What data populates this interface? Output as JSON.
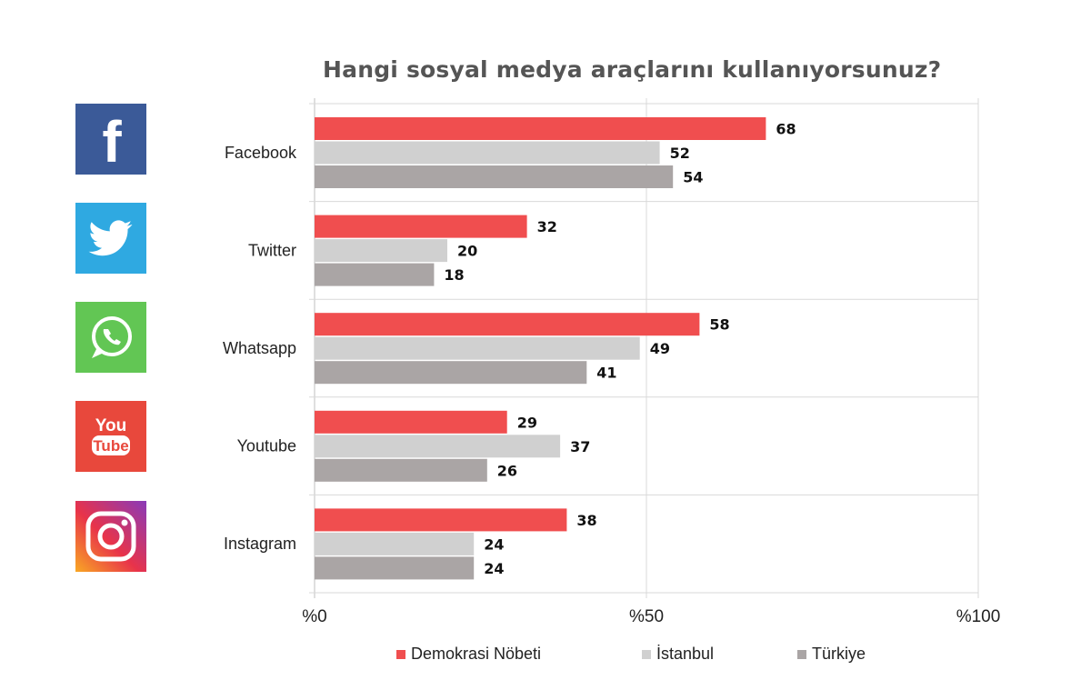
{
  "chart_data": {
    "type": "bar",
    "orientation": "horizontal",
    "title": "Hangi sosyal medya araçlarını kullanıyorsunuz?",
    "categories": [
      "Facebook",
      "Twitter",
      "Whatsapp",
      "Youtube",
      "Instagram"
    ],
    "series": [
      {
        "name": "Demokrasi Nöbeti",
        "color": "#f04e4f",
        "values": [
          68,
          32,
          58,
          29,
          38
        ]
      },
      {
        "name": "İstanbul",
        "color": "#d0d0d0",
        "values": [
          52,
          20,
          49,
          37,
          24
        ]
      },
      {
        "name": "Türkiye",
        "color": "#aaa5a5",
        "values": [
          54,
          18,
          41,
          26,
          24
        ]
      }
    ],
    "xlim": [
      0,
      100
    ],
    "xticks": [
      0,
      50,
      100
    ],
    "xtick_labels": [
      "%0",
      "%50",
      "%100"
    ],
    "grid": true,
    "legend_position": "bottom"
  },
  "icons": {
    "facebook": {
      "name": "facebook-logo",
      "color": "#3b5a98",
      "text": "f"
    },
    "twitter": {
      "name": "twitter-logo",
      "color": "#2fa9e1"
    },
    "whatsapp": {
      "name": "whatsapp-logo",
      "color": "#62c654"
    },
    "youtube": {
      "name": "youtube-logo",
      "color": "#e8483c",
      "text_top": "You",
      "text_bottom": "Tube"
    },
    "instagram": {
      "name": "instagram-logo"
    }
  }
}
